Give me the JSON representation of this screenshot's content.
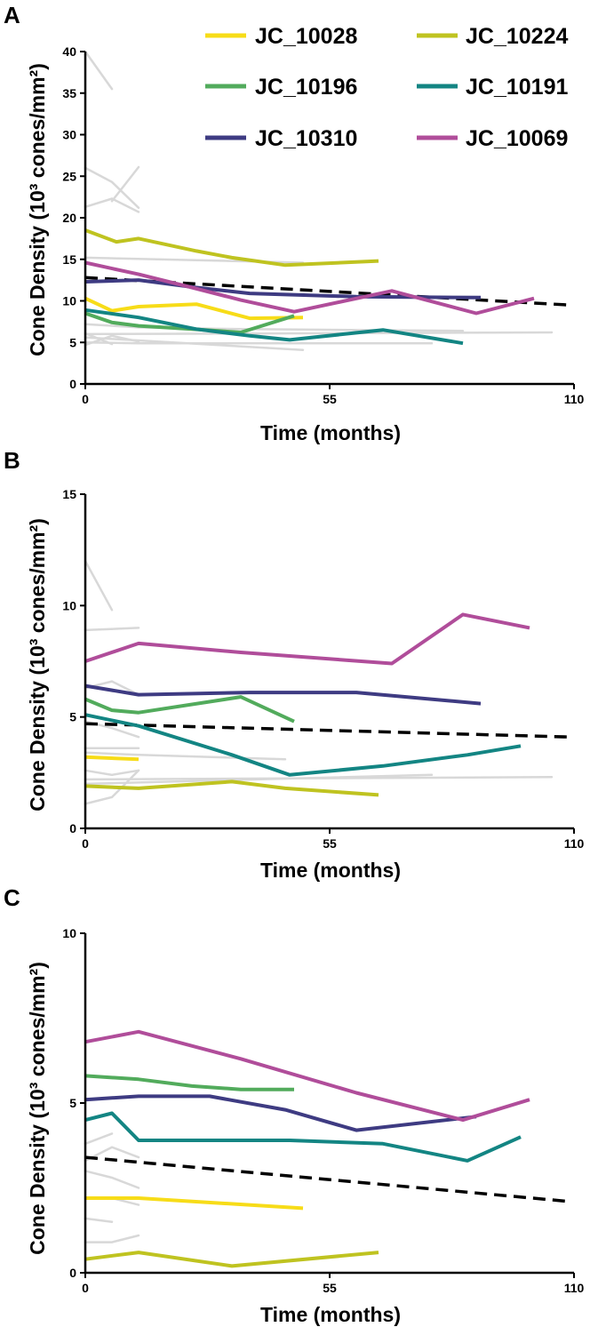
{
  "colors": {
    "JC_10028": "#f7dc18",
    "JC_10224": "#bfc320",
    "JC_10196": "#52ab5c",
    "JC_10191": "#138583",
    "JC_10310": "#3e3b82",
    "JC_10069": "#b04d9a",
    "background": "#d8d8d8",
    "trend": "#000000"
  },
  "legend": [
    {
      "name": "JC_10028",
      "color": "#f7dc18"
    },
    {
      "name": "JC_10224",
      "color": "#bfc320"
    },
    {
      "name": "JC_10196",
      "color": "#52ab5c"
    },
    {
      "name": "JC_10191",
      "color": "#138583"
    },
    {
      "name": "JC_10310",
      "color": "#3e3b82"
    },
    {
      "name": "JC_10069",
      "color": "#b04d9a"
    }
  ],
  "chart_data": [
    {
      "panel": "A",
      "type": "line",
      "xlabel": "Time (months)",
      "ylabel": "Cone Density (10³ cones/mm²)",
      "xlim": [
        0,
        110
      ],
      "ylim": [
        0,
        40
      ],
      "xticks": [
        0,
        55,
        110
      ],
      "yticks": [
        0,
        5,
        10,
        15,
        20,
        25,
        30,
        35,
        40
      ],
      "series": [
        {
          "name": "JC_10028",
          "x": [
            0,
            6,
            12,
            25,
            37,
            49
          ],
          "y": [
            10.3,
            8.8,
            9.3,
            9.6,
            7.9,
            8.0
          ]
        },
        {
          "name": "JC_10224",
          "x": [
            0,
            7,
            12,
            25,
            33,
            45,
            66
          ],
          "y": [
            18.5,
            17.1,
            17.5,
            16.0,
            15.2,
            14.3,
            14.8
          ]
        },
        {
          "name": "JC_10196",
          "x": [
            0,
            6,
            12,
            24,
            35,
            47
          ],
          "y": [
            8.5,
            7.4,
            7.0,
            6.6,
            6.2,
            8.2
          ]
        },
        {
          "name": "JC_10191",
          "x": [
            0,
            12,
            25,
            37,
            46,
            67,
            85
          ],
          "y": [
            8.9,
            8.0,
            6.6,
            5.8,
            5.3,
            6.5,
            4.9
          ]
        },
        {
          "name": "JC_10310",
          "x": [
            0,
            12,
            25,
            37,
            61,
            89
          ],
          "y": [
            12.3,
            12.5,
            11.6,
            10.9,
            10.5,
            10.4
          ]
        },
        {
          "name": "JC_10069",
          "x": [
            0,
            12,
            24,
            35,
            47,
            69,
            88,
            101
          ],
          "y": [
            14.6,
            13.2,
            11.6,
            10.1,
            8.7,
            11.2,
            8.5,
            10.3
          ]
        }
      ],
      "background_series": [
        {
          "x": [
            0,
            6
          ],
          "y": [
            40.0,
            35.5
          ]
        },
        {
          "x": [
            0,
            6,
            12
          ],
          "y": [
            26.0,
            24.3,
            21.2
          ]
        },
        {
          "x": [
            6,
            12
          ],
          "y": [
            22.0,
            26.1
          ]
        },
        {
          "x": [
            0,
            6,
            12
          ],
          "y": [
            21.3,
            22.3,
            20.7
          ]
        },
        {
          "x": [
            0,
            49
          ],
          "y": [
            15.2,
            14.6
          ]
        },
        {
          "x": [
            0,
            12,
            36,
            85
          ],
          "y": [
            7.2,
            6.8,
            6.6,
            6.4
          ]
        },
        {
          "x": [
            0,
            105
          ],
          "y": [
            6.0,
            6.2
          ]
        },
        {
          "x": [
            0,
            49
          ],
          "y": [
            5.6,
            4.1
          ]
        },
        {
          "x": [
            0,
            12,
            78
          ],
          "y": [
            5.0,
            4.9,
            4.9
          ]
        },
        {
          "x": [
            0,
            6,
            12
          ],
          "y": [
            4.7,
            5.8,
            5.1
          ]
        },
        {
          "x": [
            0,
            6
          ],
          "y": [
            6.1,
            4.8
          ]
        }
      ],
      "trend": {
        "x": [
          0,
          109
        ],
        "y": [
          12.8,
          9.5
        ]
      }
    },
    {
      "panel": "B",
      "type": "line",
      "xlabel": "Time (months)",
      "ylabel": "Cone Density (10³ cones/mm²)",
      "xlim": [
        0,
        110
      ],
      "ylim": [
        0,
        15
      ],
      "xticks": [
        0,
        55,
        110
      ],
      "yticks": [
        0,
        5,
        10,
        15
      ],
      "series": [
        {
          "name": "JC_10028",
          "x": [
            0,
            12
          ],
          "y": [
            3.2,
            3.1
          ]
        },
        {
          "name": "JC_10224",
          "x": [
            0,
            12,
            33,
            45,
            66
          ],
          "y": [
            1.9,
            1.8,
            2.1,
            1.8,
            1.5
          ]
        },
        {
          "name": "JC_10196",
          "x": [
            0,
            6,
            12,
            35,
            47
          ],
          "y": [
            5.8,
            5.3,
            5.2,
            5.9,
            4.8
          ]
        },
        {
          "name": "JC_10191",
          "x": [
            0,
            12,
            33,
            46,
            67,
            86,
            98
          ],
          "y": [
            5.1,
            4.6,
            3.3,
            2.4,
            2.8,
            3.3,
            3.7
          ]
        },
        {
          "name": "JC_10310",
          "x": [
            0,
            12,
            37,
            61,
            89
          ],
          "y": [
            6.4,
            6.0,
            6.1,
            6.1,
            5.6
          ]
        },
        {
          "name": "JC_10069",
          "x": [
            0,
            12,
            35,
            69,
            85,
            100
          ],
          "y": [
            7.5,
            8.3,
            7.9,
            7.4,
            9.6,
            9.0
          ]
        }
      ],
      "background_series": [
        {
          "x": [
            0,
            6
          ],
          "y": [
            12.0,
            9.8
          ]
        },
        {
          "x": [
            0,
            12
          ],
          "y": [
            8.9,
            9.0
          ]
        },
        {
          "x": [
            0,
            6,
            12
          ],
          "y": [
            6.3,
            6.6,
            6.0
          ]
        },
        {
          "x": [
            0,
            6,
            12
          ],
          "y": [
            4.8,
            4.5,
            4.1
          ]
        },
        {
          "x": [
            0,
            12
          ],
          "y": [
            3.6,
            3.6
          ]
        },
        {
          "x": [
            0,
            6,
            12
          ],
          "y": [
            2.6,
            2.4,
            2.6
          ]
        },
        {
          "x": [
            0,
            12,
            45
          ],
          "y": [
            3.4,
            3.3,
            3.1
          ]
        },
        {
          "x": [
            0,
            105
          ],
          "y": [
            2.2,
            2.3
          ]
        },
        {
          "x": [
            0,
            78
          ],
          "y": [
            2.0,
            2.4
          ]
        },
        {
          "x": [
            0,
            6,
            12
          ],
          "y": [
            1.1,
            1.4,
            2.6
          ]
        }
      ],
      "trend": {
        "x": [
          0,
          109
        ],
        "y": [
          4.7,
          4.1
        ]
      }
    },
    {
      "panel": "C",
      "type": "line",
      "xlabel": "Time (months)",
      "ylabel": "Cone Density (10³ cones/mm²)",
      "xlim": [
        0,
        110
      ],
      "ylim": [
        0,
        10
      ],
      "xticks": [
        0,
        55,
        110
      ],
      "yticks": [
        0,
        5,
        10
      ],
      "series": [
        {
          "name": "JC_10028",
          "x": [
            0,
            12,
            49
          ],
          "y": [
            2.2,
            2.2,
            1.9
          ]
        },
        {
          "name": "JC_10224",
          "x": [
            0,
            12,
            33,
            66
          ],
          "y": [
            0.4,
            0.6,
            0.2,
            0.6
          ]
        },
        {
          "name": "JC_10196",
          "x": [
            0,
            12,
            24,
            35,
            47
          ],
          "y": [
            5.8,
            5.7,
            5.5,
            5.4,
            5.4
          ]
        },
        {
          "name": "JC_10191",
          "x": [
            0,
            6,
            12,
            33,
            46,
            67,
            86,
            98
          ],
          "y": [
            4.5,
            4.7,
            3.9,
            3.9,
            3.9,
            3.8,
            3.3,
            4.0
          ]
        },
        {
          "name": "JC_10310",
          "x": [
            0,
            12,
            28,
            45,
            61,
            88
          ],
          "y": [
            5.1,
            5.2,
            5.2,
            4.8,
            4.2,
            4.6
          ]
        },
        {
          "name": "JC_10069",
          "x": [
            0,
            12,
            35,
            61,
            85,
            100
          ],
          "y": [
            6.8,
            7.1,
            6.3,
            5.3,
            4.5,
            5.1
          ]
        }
      ],
      "background_series": [
        {
          "x": [
            0,
            6
          ],
          "y": [
            3.8,
            4.1
          ]
        },
        {
          "x": [
            0,
            6,
            12
          ],
          "y": [
            3.3,
            3.7,
            3.4
          ]
        },
        {
          "x": [
            0,
            6,
            12
          ],
          "y": [
            3.0,
            2.8,
            2.5
          ]
        },
        {
          "x": [
            0,
            6,
            12
          ],
          "y": [
            2.2,
            2.2,
            2.0
          ]
        },
        {
          "x": [
            0,
            6
          ],
          "y": [
            1.6,
            1.5
          ]
        },
        {
          "x": [
            0,
            6,
            12
          ],
          "y": [
            0.9,
            0.9,
            1.1
          ]
        }
      ],
      "trend": {
        "x": [
          0,
          109
        ],
        "y": [
          3.4,
          2.1
        ]
      }
    }
  ]
}
